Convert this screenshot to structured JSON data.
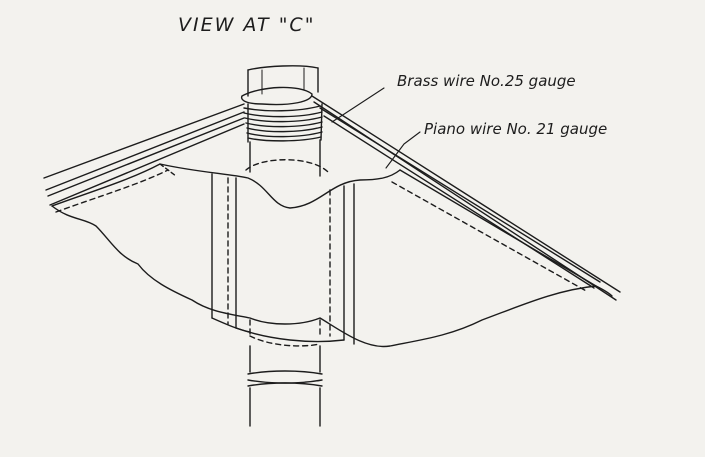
{
  "title": "VIEW AT \"C\"",
  "labels": {
    "brass": "Brass wire No.25 gauge",
    "piano": "Piano wire No. 21 gauge"
  },
  "colors": {
    "paper": "#f3f2ee",
    "ink": "#1c1c1c"
  }
}
